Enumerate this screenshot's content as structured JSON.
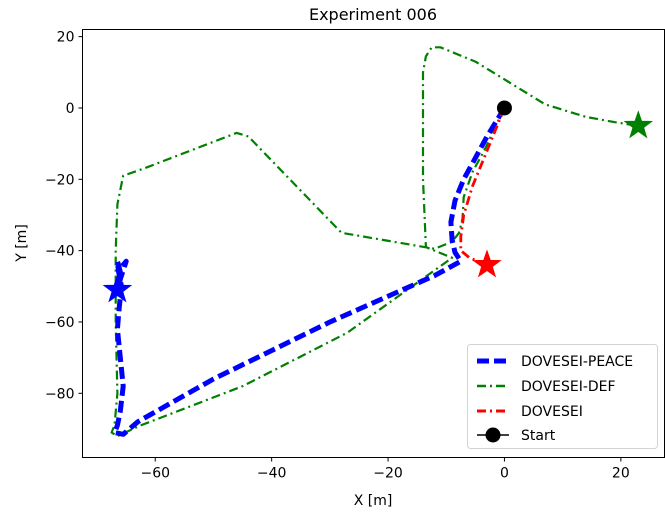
{
  "chart_data": {
    "type": "line",
    "title": "Experiment 006",
    "xlabel": "X [m]",
    "ylabel": "Y [m]",
    "xlim": [
      -72.5,
      27.5
    ],
    "ylim": [
      -98,
      22
    ],
    "xticks": [
      -60,
      -40,
      -20,
      0,
      20
    ],
    "yticks": [
      -80,
      -60,
      -40,
      -20,
      0,
      20
    ],
    "xtick_labels": [
      "−60",
      "−40",
      "−20",
      "0",
      "20"
    ],
    "ytick_labels": [
      "−80",
      "−60",
      "−40",
      "−20",
      "0",
      "20"
    ],
    "grid": false,
    "legend_position": "lower-right",
    "series": [
      {
        "name": "DOVESEI-PEACE",
        "color": "#0000ff",
        "style": "dashed-thick",
        "x": [
          0,
          -3,
          -5,
          -7,
          -8.5,
          -9.2,
          -9,
          -8.5,
          -7.5,
          -12,
          -30,
          -50,
          -63,
          -65.5,
          -67,
          -66.5,
          -66,
          -65.5,
          -66,
          -66.5,
          -66.2,
          -65.8,
          -66.3,
          -66.5,
          -66.3,
          -66,
          -65.5,
          -65,
          -66,
          -66.5,
          -66.5
        ],
        "y": [
          0,
          -8,
          -14,
          -20,
          -26,
          -32,
          -37,
          -40.5,
          -43,
          -47,
          -60,
          -76,
          -88,
          -91.5,
          -91,
          -89,
          -85,
          -78,
          -70,
          -62,
          -56,
          -50,
          -46,
          -43,
          -44,
          -46,
          -44,
          -43,
          -48,
          -52,
          -51
        ],
        "end_x": -66.5,
        "end_y": -51,
        "end_marker": "star"
      },
      {
        "name": "DOVESEI-DEF",
        "color": "#008000",
        "style": "dashdot",
        "x": [
          0,
          -1.5,
          -3.5,
          -5.5,
          -7,
          -7.2,
          -7.8,
          -9,
          -12,
          -28,
          -44,
          -46,
          -62,
          -65.5,
          -66.5,
          -66.8,
          -66.8,
          -66.5,
          -67,
          -67.5,
          -66.5,
          -62.5,
          -45,
          -27,
          -9,
          -13.5,
          -14,
          -14,
          -13.5,
          -12.5,
          -11,
          -5,
          7,
          14,
          19,
          23
        ],
        "y": [
          0,
          -5,
          -12,
          -18,
          -25,
          -31,
          -35,
          -37.5,
          -39.5,
          -35,
          -8,
          -7,
          -17,
          -19,
          -27,
          -40,
          -60,
          -80,
          -89,
          -91,
          -92,
          -89,
          -78,
          -63,
          -42,
          -39,
          -20,
          10,
          14.5,
          17,
          17,
          13,
          1,
          -2.5,
          -4,
          -5
        ],
        "end_x": 23,
        "end_y": -5,
        "end_marker": "star"
      },
      {
        "name": "DOVESEI",
        "color": "#ff0000",
        "style": "dashdot",
        "x": [
          0,
          -1.5,
          -3.5,
          -5.5,
          -7,
          -7.5,
          -7.5,
          -6,
          -3
        ],
        "y": [
          0,
          -6,
          -14,
          -22,
          -30,
          -36,
          -40,
          -42,
          -44
        ],
        "end_x": -3,
        "end_y": -44,
        "end_marker": "star"
      }
    ],
    "start": {
      "name": "Start",
      "x": 0,
      "y": 0,
      "color": "#000000"
    }
  }
}
